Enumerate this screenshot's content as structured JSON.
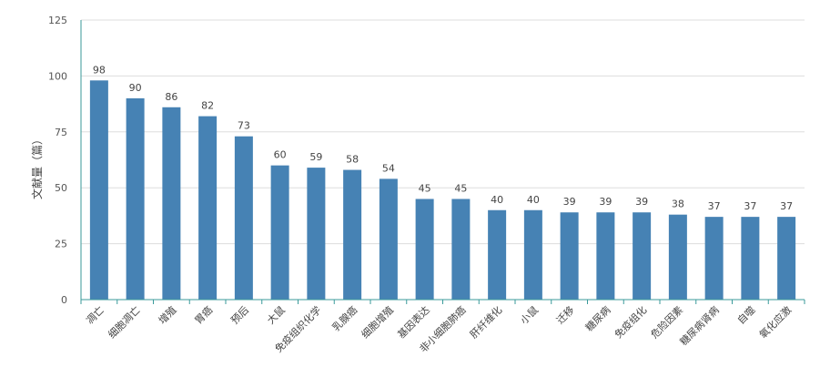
{
  "chart_data": {
    "type": "bar",
    "ylabel": "文献量（篇）",
    "xlabel": "",
    "title": "",
    "ylim": [
      0,
      125
    ],
    "yticks": [
      0,
      25,
      50,
      75,
      100,
      125
    ],
    "grid": true,
    "categories": [
      "凋亡",
      "细胞凋亡",
      "增殖",
      "胃癌",
      "预后",
      "大鼠",
      "免疫组织化学",
      "乳腺癌",
      "细胞增殖",
      "基因表达",
      "非小细胞肺癌",
      "肝纤维化",
      "小鼠",
      "迁移",
      "糖尿病",
      "免疫组化",
      "危险因素",
      "糖尿病肾病",
      "自噬",
      "氧化应激"
    ],
    "values": [
      98,
      90,
      86,
      82,
      73,
      60,
      59,
      58,
      54,
      45,
      45,
      40,
      40,
      39,
      39,
      39,
      38,
      37,
      37,
      37
    ],
    "colors": {
      "bar": "#4682b4",
      "axis": "#3a9a9a",
      "grid": "#dddddd"
    }
  }
}
